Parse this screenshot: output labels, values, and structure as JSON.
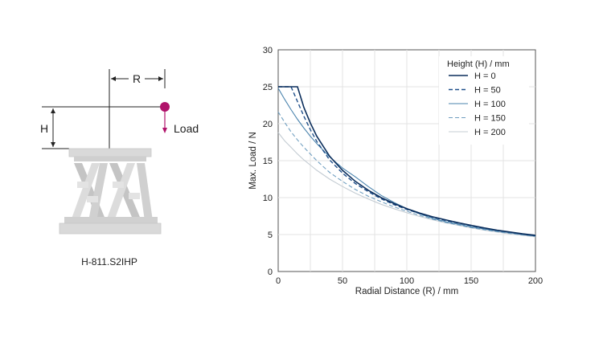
{
  "illustration": {
    "radius_label": "R",
    "height_label": "H",
    "load_label": "Load",
    "caption": "H-811.S2IHP",
    "colors": {
      "load_point": "#b0126a",
      "hexapod": "#d9d9d9",
      "hexapod_dark": "#bfbfbf"
    }
  },
  "chart_data": {
    "type": "line",
    "title": "",
    "xlabel": "Radial Distance (R) / mm",
    "ylabel": "Max. Load / N",
    "xlim": [
      0,
      200
    ],
    "ylim": [
      0,
      30
    ],
    "xticks": [
      0,
      50,
      100,
      150,
      200
    ],
    "yticks": [
      0,
      5,
      10,
      15,
      20,
      25,
      30
    ],
    "grid": true,
    "legend": {
      "title": "Height (H) / mm",
      "position": "top-right"
    },
    "x": [
      0,
      5,
      10,
      15,
      20,
      25,
      30,
      40,
      50,
      60,
      70,
      80,
      90,
      100,
      110,
      120,
      130,
      140,
      150,
      160,
      170,
      180,
      190,
      200
    ],
    "series": [
      {
        "name": "H = 0",
        "color": "#0b2e5c",
        "dash": "solid",
        "width": 1.6,
        "values": [
          25,
          25,
          25,
          25,
          22.2,
          20.1,
          18.3,
          15.6,
          13.7,
          12.2,
          11.0,
          10.0,
          9.2,
          8.5,
          7.9,
          7.4,
          7.0,
          6.6,
          6.25,
          5.9,
          5.6,
          5.35,
          5.1,
          4.9
        ]
      },
      {
        "name": "H = 50",
        "color": "#1f4f8a",
        "dash": "5,3",
        "width": 1.4,
        "values": [
          25,
          25,
          25,
          23.0,
          21.0,
          19.2,
          17.6,
          15.1,
          13.3,
          11.9,
          10.8,
          9.85,
          9.05,
          8.4,
          7.85,
          7.35,
          6.9,
          6.55,
          6.2,
          5.85,
          5.55,
          5.3,
          5.05,
          4.85
        ]
      },
      {
        "name": "H = 100",
        "color": "#4a83ad",
        "dash": "solid",
        "width": 1.1,
        "values": [
          24.8,
          23.3,
          21.9,
          20.6,
          19.4,
          18.3,
          17.3,
          15.5,
          14.0,
          12.8,
          11.5,
          10.3,
          9.35,
          8.5,
          7.8,
          7.2,
          6.75,
          6.4,
          6.05,
          5.75,
          5.5,
          5.25,
          5.0,
          4.8
        ]
      },
      {
        "name": "H = 150",
        "color": "#6f9ec0",
        "dash": "5,3",
        "width": 1.1,
        "values": [
          21.6,
          20.2,
          18.9,
          17.8,
          16.8,
          15.9,
          15.0,
          13.4,
          12.2,
          11.1,
          10.2,
          9.45,
          8.75,
          8.15,
          7.6,
          7.1,
          6.65,
          6.3,
          5.95,
          5.65,
          5.4,
          5.15,
          4.95,
          4.75
        ]
      },
      {
        "name": "H = 200",
        "color": "#c4ccd3",
        "dash": "solid",
        "width": 1.1,
        "values": [
          18.8,
          17.7,
          16.8,
          15.9,
          15.1,
          14.4,
          13.7,
          12.5,
          11.5,
          10.6,
          9.8,
          9.1,
          8.5,
          7.95,
          7.45,
          7.0,
          6.6,
          6.25,
          5.9,
          5.6,
          5.35,
          5.1,
          4.9,
          4.7
        ]
      }
    ]
  }
}
